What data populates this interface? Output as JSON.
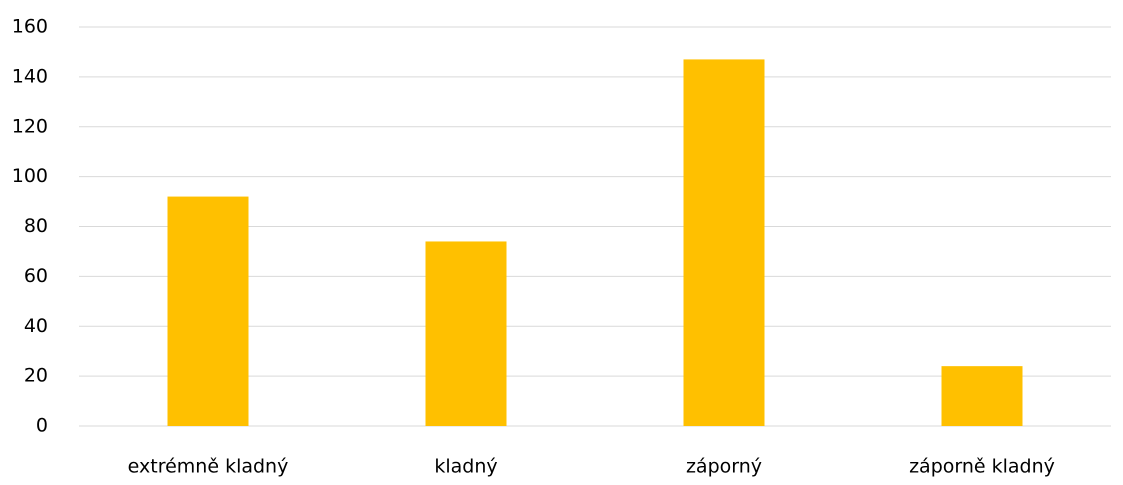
{
  "chart_data": {
    "type": "bar",
    "categories": [
      "extrémně kladný",
      "kladný",
      "záporný",
      "záporně kladný"
    ],
    "values": [
      92,
      74,
      147,
      24
    ],
    "color": "#ffc000",
    "ylim": [
      0,
      160
    ],
    "yticks": [
      0,
      20,
      40,
      60,
      80,
      100,
      120,
      140,
      160
    ],
    "grid": true
  }
}
